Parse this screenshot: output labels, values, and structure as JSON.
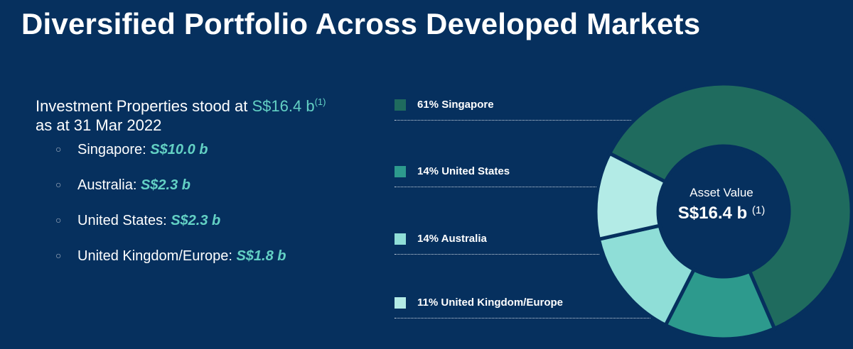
{
  "header": {
    "title": "Diversified Portfolio Across Developed Markets"
  },
  "intro": {
    "prefix": "Investment Properties stood at ",
    "total": "S$16.4 b",
    "footnote": "(1)",
    "line2": "as at 31 Mar 2022"
  },
  "breakdown": [
    {
      "label": "Singapore: ",
      "value": "S$10.0 b"
    },
    {
      "label": "Australia: ",
      "value": "S$2.3 b"
    },
    {
      "label": "United States: ",
      "value": "S$2.3 b"
    },
    {
      "label": "United Kingdom/Europe: ",
      "value": "S$1.8 b"
    }
  ],
  "colors": {
    "background": "#06305e",
    "highlight": "#63d1c4",
    "singapore": "#1f6b5e",
    "united_states": "#2d9a8d",
    "australia": "#8fded7",
    "uk_europe": "#b3ebe6"
  },
  "chart_data": {
    "type": "pie",
    "donut": true,
    "center_label": {
      "top": "Asset Value",
      "value": "S$16.4 b",
      "footnote": "(1)"
    },
    "legend_placement": "left",
    "slices": [
      {
        "label": "61% Singapore",
        "name": "Singapore",
        "value": 61,
        "color": "#1f6b5e"
      },
      {
        "label": "14% United States",
        "name": "United States",
        "value": 14,
        "color": "#2d9a8d"
      },
      {
        "label": "14% Australia",
        "name": "Australia",
        "value": 14,
        "color": "#8fded7"
      },
      {
        "label": "11%  United Kingdom/Europe",
        "name": "United Kingdom/Europe",
        "value": 11,
        "color": "#b3ebe6"
      }
    ]
  }
}
